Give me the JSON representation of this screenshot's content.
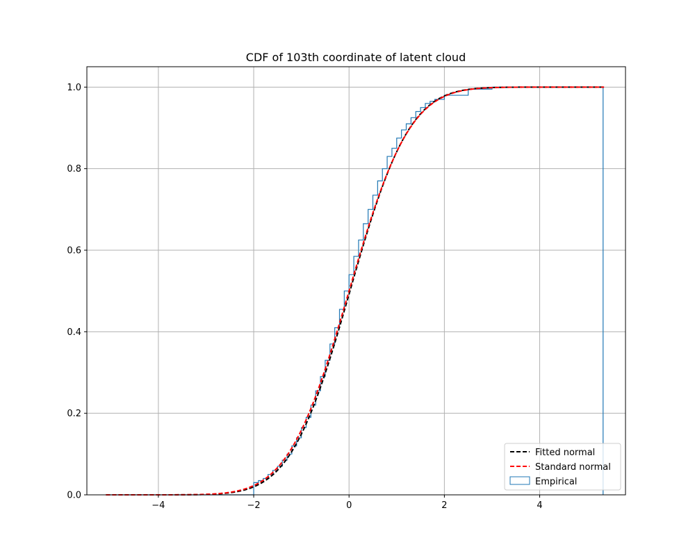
{
  "chart_data": {
    "type": "line",
    "title": "CDF of 103th coordinate of latent cloud",
    "xlabel": "",
    "ylabel": "",
    "xlim": [
      -5.5,
      5.8
    ],
    "ylim": [
      0.0,
      1.05
    ],
    "xticks": [
      -4,
      -2,
      0,
      2,
      4
    ],
    "xtick_labels": [
      "−4",
      "−2",
      "0",
      "2",
      "4"
    ],
    "yticks": [
      0.0,
      0.2,
      0.4,
      0.6,
      0.8,
      1.0
    ],
    "ytick_labels": [
      "0.0",
      "0.2",
      "0.4",
      "0.6",
      "0.8",
      "1.0"
    ],
    "grid": true,
    "legend_position": "lower-right",
    "series": [
      {
        "name": "Fitted normal",
        "kind": "line",
        "style": "dashed",
        "color": "#000000",
        "mean": 0.02,
        "std": 0.98,
        "x_range": [
          -5.1,
          5.35
        ]
      },
      {
        "name": "Standard normal",
        "kind": "line",
        "style": "dashed",
        "color": "#ff0000",
        "mean": 0.0,
        "std": 1.0,
        "x_range": [
          -5.1,
          5.35
        ]
      },
      {
        "name": "Empirical",
        "kind": "step",
        "color": "#1f77b4",
        "x": [
          -5.1,
          -2.0,
          -1.9,
          -1.8,
          -1.7,
          -1.6,
          -1.5,
          -1.4,
          -1.3,
          -1.2,
          -1.1,
          -1.0,
          -0.9,
          -0.8,
          -0.7,
          -0.6,
          -0.5,
          -0.4,
          -0.3,
          -0.2,
          -0.1,
          0.0,
          0.1,
          0.2,
          0.3,
          0.4,
          0.5,
          0.6,
          0.7,
          0.8,
          0.9,
          1.0,
          1.1,
          1.2,
          1.3,
          1.4,
          1.5,
          1.6,
          1.7,
          1.8,
          2.0,
          2.5,
          3.0,
          5.33
        ],
        "y": [
          0.0,
          0.03,
          0.035,
          0.04,
          0.05,
          0.06,
          0.07,
          0.085,
          0.1,
          0.12,
          0.14,
          0.165,
          0.19,
          0.22,
          0.255,
          0.29,
          0.33,
          0.37,
          0.41,
          0.455,
          0.5,
          0.54,
          0.585,
          0.625,
          0.665,
          0.7,
          0.735,
          0.77,
          0.8,
          0.83,
          0.85,
          0.875,
          0.895,
          0.91,
          0.925,
          0.94,
          0.95,
          0.96,
          0.965,
          0.97,
          0.98,
          0.995,
          1.0,
          1.0
        ]
      }
    ]
  }
}
